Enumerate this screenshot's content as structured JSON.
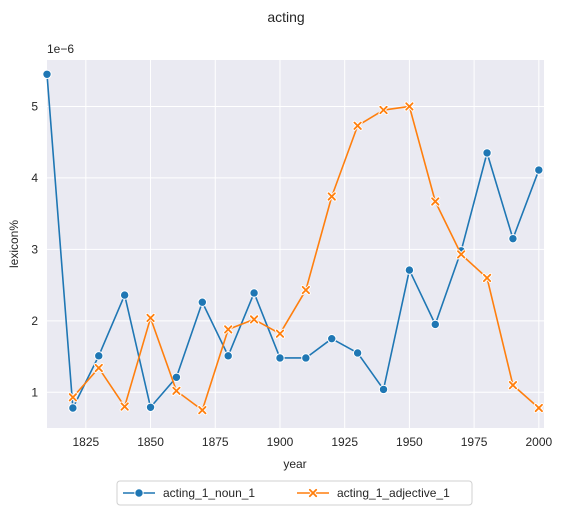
{
  "chart_data": {
    "type": "line",
    "title": "acting",
    "xlabel": "year",
    "ylabel": "lexicon%",
    "y_offset_label": "1e−6",
    "xlim": [
      1810,
      2002
    ],
    "ylim": [
      0.5,
      5.65
    ],
    "x_ticks": [
      1825,
      1850,
      1875,
      1900,
      1925,
      1950,
      1975,
      2000
    ],
    "x_tick_labels": [
      "1825",
      "1850",
      "1875",
      "1900",
      "1925",
      "1950",
      "1975",
      "2000"
    ],
    "y_ticks": [
      1,
      2,
      3,
      4,
      5
    ],
    "y_tick_labels": [
      "1",
      "2",
      "3",
      "4",
      "5"
    ],
    "grid": true,
    "legend_position": "bottom-center",
    "x": [
      1810,
      1820,
      1830,
      1840,
      1850,
      1860,
      1870,
      1880,
      1890,
      1900,
      1910,
      1920,
      1930,
      1940,
      1950,
      1960,
      1970,
      1980,
      1990,
      2000
    ],
    "series": [
      {
        "name": "acting_1_noun_1",
        "color": "#1f77b4",
        "marker": "circle",
        "points": [
          [
            1810,
            5.45
          ],
          [
            1820,
            0.78
          ],
          [
            1830,
            1.51
          ],
          [
            1840,
            2.36
          ],
          [
            1850,
            0.79
          ],
          [
            1860,
            1.21
          ],
          [
            1870,
            2.26
          ],
          [
            1880,
            1.51
          ],
          [
            1890,
            2.39
          ],
          [
            1900,
            1.48
          ],
          [
            1910,
            1.48
          ],
          [
            1920,
            1.75
          ],
          [
            1930,
            1.55
          ],
          [
            1940,
            1.04
          ],
          [
            1950,
            2.71
          ],
          [
            1960,
            1.95
          ],
          [
            1970,
            2.98
          ],
          [
            1980,
            4.35
          ],
          [
            1990,
            3.15
          ],
          [
            2000,
            4.11
          ]
        ]
      },
      {
        "name": "acting_1_adjective_1",
        "color": "#ff7f0e",
        "marker": "x",
        "points": [
          [
            1820,
            0.93
          ],
          [
            1830,
            1.34
          ],
          [
            1840,
            0.8
          ],
          [
            1850,
            2.04
          ],
          [
            1860,
            1.02
          ],
          [
            1870,
            0.75
          ],
          [
            1880,
            1.88
          ],
          [
            1890,
            2.02
          ],
          [
            1900,
            1.82
          ],
          [
            1910,
            2.43
          ],
          [
            1920,
            3.74
          ],
          [
            1930,
            4.73
          ],
          [
            1940,
            4.95
          ],
          [
            1950,
            5.0
          ],
          [
            1960,
            3.67
          ],
          [
            1970,
            2.93
          ],
          [
            1980,
            2.6
          ],
          [
            1990,
            1.1
          ],
          [
            2000,
            0.78
          ]
        ]
      }
    ]
  },
  "colors": {
    "plot_background": "#eaeaf2",
    "grid": "#ffffff",
    "text": "#262626"
  }
}
